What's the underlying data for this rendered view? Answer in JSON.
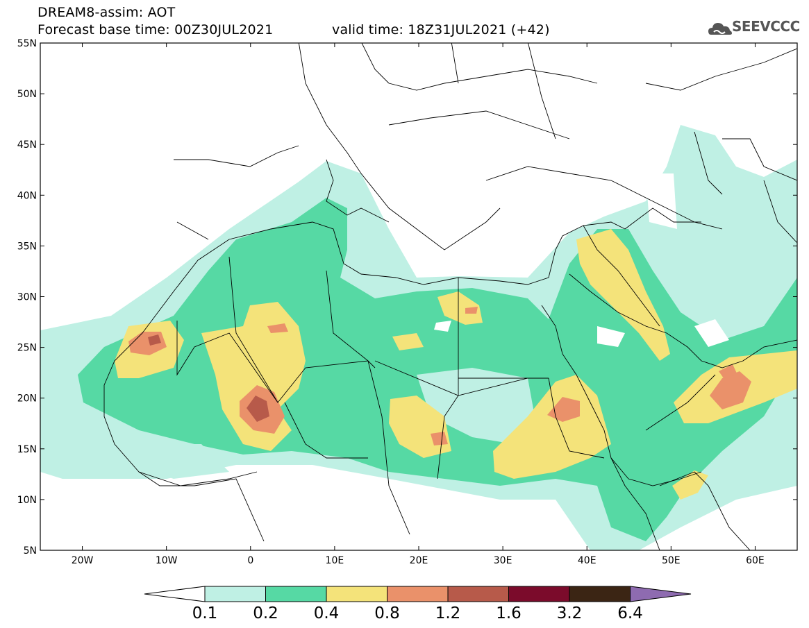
{
  "header": {
    "title_line1": "DREAM8-assim: AOT",
    "title_line2": "Forecast base time: 00Z30JUL2021",
    "title_line3": "valid time: 18Z31JUL2021 (+42)",
    "logo_text": "SEEVCCC"
  },
  "map": {
    "lon_range": [
      -25,
      65
    ],
    "lat_range": [
      5,
      55
    ],
    "lon_ticks": [
      {
        "value": -20,
        "label": "20W"
      },
      {
        "value": -10,
        "label": "10W"
      },
      {
        "value": 0,
        "label": "0"
      },
      {
        "value": 10,
        "label": "10E"
      },
      {
        "value": 20,
        "label": "20E"
      },
      {
        "value": 30,
        "label": "30E"
      },
      {
        "value": 40,
        "label": "40E"
      },
      {
        "value": 50,
        "label": "50E"
      },
      {
        "value": 60,
        "label": "60E"
      }
    ],
    "lat_ticks": [
      {
        "value": 55,
        "label": "55N"
      },
      {
        "value": 50,
        "label": "50N"
      },
      {
        "value": 45,
        "label": "45N"
      },
      {
        "value": 40,
        "label": "40N"
      },
      {
        "value": 35,
        "label": "35N"
      },
      {
        "value": 30,
        "label": "30N"
      },
      {
        "value": 25,
        "label": "25N"
      },
      {
        "value": 20,
        "label": "20N"
      },
      {
        "value": 15,
        "label": "15N"
      },
      {
        "value": 10,
        "label": "10N"
      },
      {
        "value": 5,
        "label": "5N"
      }
    ]
  },
  "colorbar": {
    "levels": [
      "0.1",
      "0.2",
      "0.4",
      "0.8",
      "1.2",
      "1.6",
      "3.2",
      "6.4"
    ],
    "colors": [
      "#ffffff",
      "#bff0e4",
      "#56d9a4",
      "#f4e37a",
      "#ea916a",
      "#b75a4a",
      "#7b0b2b",
      "#3b2514",
      "#8e6bb0"
    ]
  }
}
